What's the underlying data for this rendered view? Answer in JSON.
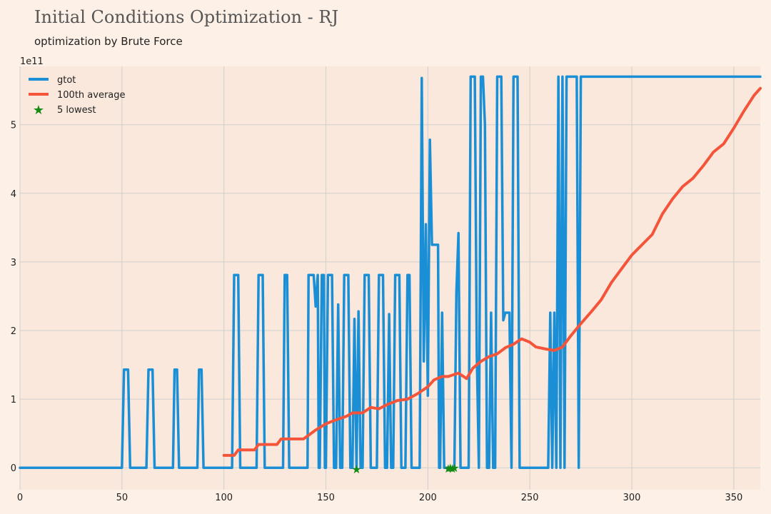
{
  "chart_data": {
    "type": "line",
    "title": "Initial Conditions Optimization - RJ",
    "subtitle": "optimization by Brute Force",
    "xlabel": "",
    "ylabel": "",
    "y_offset_label": "1e11",
    "xlim": [
      0,
      363
    ],
    "ylim": [
      -0.32,
      5.85
    ],
    "x_ticks": [
      0,
      50,
      100,
      150,
      200,
      250,
      300,
      350
    ],
    "y_ticks": [
      0,
      1,
      2,
      3,
      4,
      5
    ],
    "grid": true,
    "legend_position": "top-left",
    "colors": {
      "gtot": "#1a8fd6",
      "avg": "#f4553a",
      "lowest": "#138a13",
      "plot_bg": "#fae8dc"
    },
    "series": [
      {
        "name": "gtot",
        "kind": "line",
        "points": [
          [
            0,
            0
          ],
          [
            50,
            0
          ],
          [
            51,
            1.43
          ],
          [
            53,
            1.43
          ],
          [
            54,
            0
          ],
          [
            62,
            0
          ],
          [
            63,
            1.43
          ],
          [
            65,
            1.43
          ],
          [
            66,
            0
          ],
          [
            75,
            0
          ],
          [
            75.8,
            1.43
          ],
          [
            77,
            1.43
          ],
          [
            78,
            0
          ],
          [
            87,
            0
          ],
          [
            87.8,
            1.43
          ],
          [
            89,
            1.43
          ],
          [
            90,
            0
          ],
          [
            104,
            0
          ],
          [
            105,
            2.81
          ],
          [
            107,
            2.81
          ],
          [
            108,
            0
          ],
          [
            116,
            0
          ],
          [
            117,
            2.81
          ],
          [
            119,
            2.81
          ],
          [
            120,
            0
          ],
          [
            129,
            0
          ],
          [
            129.8,
            2.81
          ],
          [
            131,
            2.81
          ],
          [
            132,
            0
          ],
          [
            141,
            0
          ],
          [
            141.5,
            2.81
          ],
          [
            144,
            2.81
          ],
          [
            145,
            2.35
          ],
          [
            146,
            2.81
          ],
          [
            146.5,
            0
          ],
          [
            147,
            0
          ],
          [
            148,
            2.81
          ],
          [
            149,
            2.81
          ],
          [
            149.5,
            0
          ],
          [
            150,
            0
          ],
          [
            151,
            2.81
          ],
          [
            153,
            2.81
          ],
          [
            154,
            0
          ],
          [
            155,
            0
          ],
          [
            156,
            2.38
          ],
          [
            157,
            0
          ],
          [
            158,
            0
          ],
          [
            159,
            2.81
          ],
          [
            161,
            2.81
          ],
          [
            162,
            0
          ],
          [
            163,
            0
          ],
          [
            164,
            2.17
          ],
          [
            165,
            0
          ],
          [
            166,
            2.28
          ],
          [
            167,
            0
          ],
          [
            168,
            0
          ],
          [
            169,
            2.81
          ],
          [
            171,
            2.81
          ],
          [
            172,
            0
          ],
          [
            175,
            0
          ],
          [
            176,
            2.81
          ],
          [
            178,
            2.81
          ],
          [
            179,
            0
          ],
          [
            180,
            0
          ],
          [
            181,
            2.24
          ],
          [
            182,
            0
          ],
          [
            183,
            0
          ],
          [
            184,
            2.81
          ],
          [
            186,
            2.81
          ],
          [
            187,
            0
          ],
          [
            189,
            0
          ],
          [
            190,
            2.81
          ],
          [
            191,
            2.81
          ],
          [
            192,
            0
          ],
          [
            196,
            0
          ],
          [
            197,
            5.68
          ],
          [
            198,
            1.55
          ],
          [
            199,
            3.55
          ],
          [
            200,
            1.05
          ],
          [
            201,
            4.78
          ],
          [
            202,
            3.25
          ],
          [
            205,
            3.25
          ],
          [
            205.5,
            0
          ],
          [
            206,
            0
          ],
          [
            207,
            2.26
          ],
          [
            208,
            0
          ],
          [
            213,
            0
          ],
          [
            214,
            2.55
          ],
          [
            215,
            3.42
          ],
          [
            216,
            0
          ],
          [
            220,
            0
          ],
          [
            221,
            5.7
          ],
          [
            223,
            5.7
          ],
          [
            224,
            1.65
          ],
          [
            225,
            0
          ],
          [
            226,
            5.7
          ],
          [
            227,
            5.7
          ],
          [
            228,
            5.0
          ],
          [
            229,
            0
          ],
          [
            230,
            0
          ],
          [
            231,
            2.26
          ],
          [
            232,
            0
          ],
          [
            233,
            0
          ],
          [
            234,
            5.7
          ],
          [
            236,
            5.7
          ],
          [
            237,
            2.15
          ],
          [
            238,
            2.26
          ],
          [
            240,
            2.26
          ],
          [
            241,
            0
          ],
          [
            242,
            5.7
          ],
          [
            244,
            5.7
          ],
          [
            245,
            0
          ],
          [
            259,
            0
          ],
          [
            260,
            2.26
          ],
          [
            261,
            0
          ],
          [
            262,
            2.26
          ],
          [
            263,
            0
          ],
          [
            264,
            5.7
          ],
          [
            265,
            0
          ],
          [
            266,
            5.7
          ],
          [
            267,
            0
          ],
          [
            268,
            5.7
          ],
          [
            273,
            5.7
          ],
          [
            274,
            0
          ],
          [
            275,
            5.7
          ],
          [
            363,
            5.7
          ]
        ]
      },
      {
        "name": "100th average",
        "kind": "line",
        "points": [
          [
            100,
            0.18
          ],
          [
            105,
            0.18
          ],
          [
            107,
            0.26
          ],
          [
            115,
            0.26
          ],
          [
            117,
            0.34
          ],
          [
            126,
            0.34
          ],
          [
            128,
            0.42
          ],
          [
            139,
            0.42
          ],
          [
            145,
            0.55
          ],
          [
            150,
            0.64
          ],
          [
            155,
            0.7
          ],
          [
            160,
            0.75
          ],
          [
            163,
            0.8
          ],
          [
            168,
            0.8
          ],
          [
            172,
            0.88
          ],
          [
            176,
            0.86
          ],
          [
            180,
            0.92
          ],
          [
            185,
            0.98
          ],
          [
            190,
            1.0
          ],
          [
            195,
            1.08
          ],
          [
            200,
            1.18
          ],
          [
            203,
            1.28
          ],
          [
            207,
            1.33
          ],
          [
            210,
            1.33
          ],
          [
            215,
            1.38
          ],
          [
            219,
            1.3
          ],
          [
            222,
            1.45
          ],
          [
            226,
            1.55
          ],
          [
            230,
            1.62
          ],
          [
            234,
            1.66
          ],
          [
            238,
            1.75
          ],
          [
            242,
            1.8
          ],
          [
            246,
            1.88
          ],
          [
            250,
            1.83
          ],
          [
            253,
            1.76
          ],
          [
            258,
            1.73
          ],
          [
            262,
            1.71
          ],
          [
            266,
            1.76
          ],
          [
            270,
            1.92
          ],
          [
            275,
            2.1
          ],
          [
            280,
            2.27
          ],
          [
            285,
            2.45
          ],
          [
            290,
            2.7
          ],
          [
            295,
            2.9
          ],
          [
            300,
            3.1
          ],
          [
            305,
            3.25
          ],
          [
            310,
            3.4
          ],
          [
            315,
            3.7
          ],
          [
            320,
            3.92
          ],
          [
            325,
            4.1
          ],
          [
            330,
            4.22
          ],
          [
            335,
            4.4
          ],
          [
            340,
            4.6
          ],
          [
            345,
            4.72
          ],
          [
            350,
            4.95
          ],
          [
            355,
            5.2
          ],
          [
            360,
            5.43
          ],
          [
            363,
            5.53
          ]
        ]
      },
      {
        "name": "5 lowest",
        "kind": "scatter",
        "points": [
          [
            165,
            -0.02
          ],
          [
            210,
            -0.01
          ],
          [
            211,
            0.0
          ],
          [
            212,
            -0.01
          ],
          [
            213,
            0.0
          ]
        ]
      }
    ]
  }
}
